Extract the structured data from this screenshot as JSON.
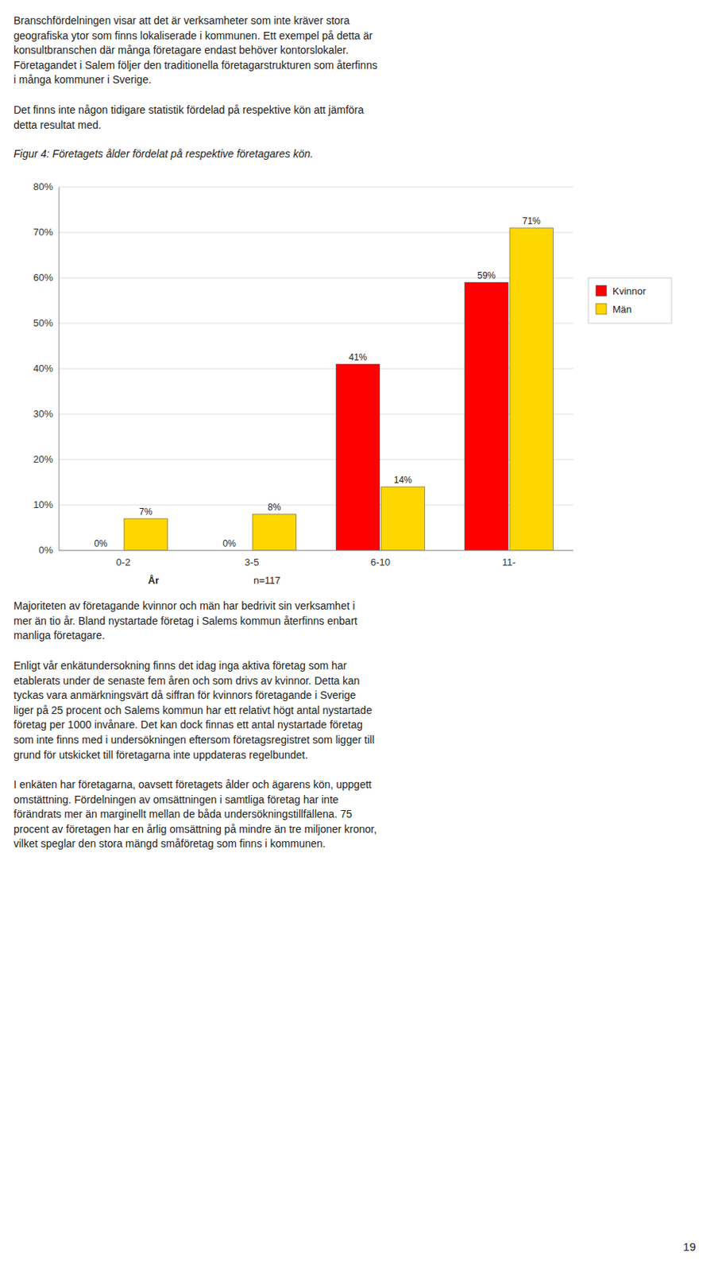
{
  "chart_data": {
    "type": "bar",
    "title": "Figur 4: Företagets ålder fördelat på respektive företagares kön.",
    "categories": [
      "0-2",
      "3-5",
      "6-10",
      "11-"
    ],
    "series": [
      {
        "name": "Kvinnor",
        "color": "#FF0000",
        "values": [
          0,
          0,
          41,
          59
        ],
        "value_labels": [
          "0%",
          "0%",
          "41%",
          "59%"
        ]
      },
      {
        "name": "Män",
        "color": "#FFD700",
        "values": [
          7,
          8,
          14,
          71
        ],
        "value_labels": [
          "7%",
          "8%",
          "14%",
          "71%"
        ]
      }
    ],
    "ylim": [
      0,
      80
    ],
    "yticks": [
      {
        "value": 0,
        "label": "0%"
      },
      {
        "value": 10,
        "label": "10%"
      },
      {
        "value": 20,
        "label": "20%"
      },
      {
        "value": 30,
        "label": "30%"
      },
      {
        "value": 40,
        "label": "40%"
      },
      {
        "value": 50,
        "label": "50%"
      },
      {
        "value": 60,
        "label": "60%"
      },
      {
        "value": 70,
        "label": "70%"
      },
      {
        "value": 80,
        "label": "80%"
      }
    ],
    "x_label": "År",
    "annotations": [
      "n=117"
    ],
    "grid": true,
    "legend": "right",
    "data_labels": true
  },
  "text_above": [
    "Branschfördelningen visar att det är verksamheter som inte kräver stora\ngeografiska ytor som finns lokaliserade i kommunen. Ett exempel på detta är\nkonsultbranschen där många företagare endast behöver kontorslokaler.\nFöretagandet i Salem följer den traditionella företagarstrukturen som återfinns\ni många kommuner i Sverige.",
    "Det finns inte någon tidigare statistik fördelad på respektive kön att jämföra\ndetta resultat med."
  ],
  "text_below": [
    "Majoriteten av företagande kvinnor och män har bedrivit sin verksamhet i\nmer än tio år. Bland nystartade företag i Salems kommun återfinns enbart\nmanliga företagare.",
    "Enligt vår enkätundersokning finns det idag inga aktiva företag som har\netablerats under de senaste fem åren och som drivs av kvinnor. Detta kan\ntyckas vara anmärkningsvärt då siffran för kvinnors företagande i Sverige\nliger på 25 procent och Salems kommun har ett relativt högt antal nystartade\nföretag per 1000 invånare. Det kan dock finnas ett antal nystartade företag\nsom inte finns med i undersökningen eftersom företagsregistret som ligger till\ngrund för utskicket till företagarna inte uppdateras regelbundet.",
    "I enkäten har företagarna, oavsett företagets ålder och ägarens kön, uppgett\nomstättning. Fördelningen av omsättningen i samtliga företag har inte\nförändrats mer än marginellt mellan de båda undersökningstillfällena. 75\nprocent av företagen har en årlig omsättning på mindre än tre miljoner kronor,\nvilket speglar den stora mängd småföretag som finns i kommunen."
  ],
  "page_number": "19"
}
